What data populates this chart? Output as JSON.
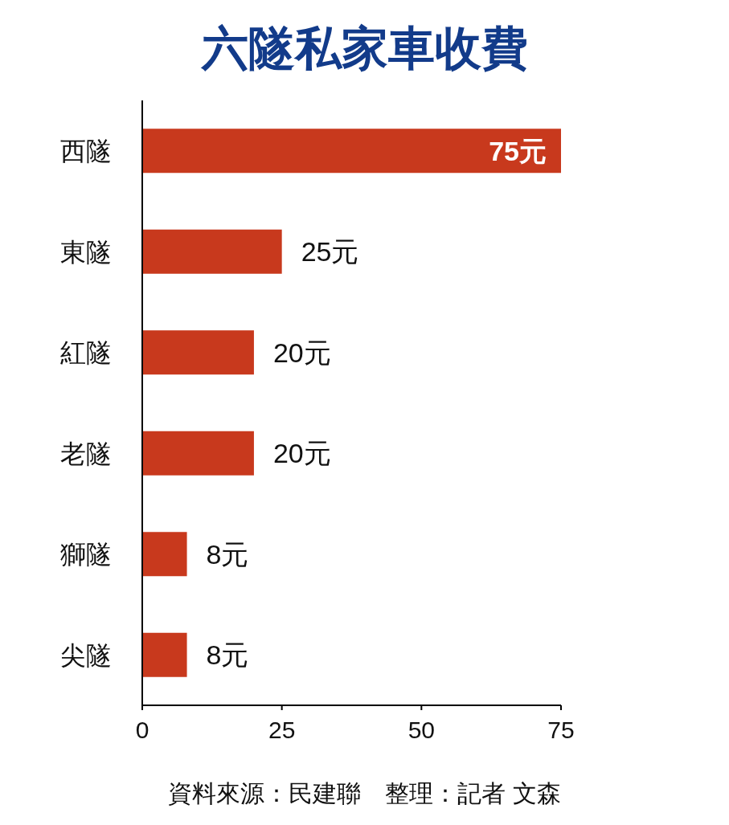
{
  "chart_data": {
    "type": "bar",
    "orientation": "horizontal",
    "title": "六隧私家車收費",
    "categories": [
      "西隧",
      "東隧",
      "紅隧",
      "老隧",
      "獅隧",
      "尖隧"
    ],
    "values": [
      75,
      25,
      20,
      20,
      8,
      8
    ],
    "value_labels": [
      "75元",
      "25元",
      "20元",
      "20元",
      "8元",
      "8元"
    ],
    "color": "#c8391d",
    "xlim": [
      0,
      75
    ],
    "xticks": [
      0,
      25,
      50,
      75
    ],
    "grid": false,
    "legend": false,
    "annotations": [
      "資料來源：民建聯　整理：記者 文森"
    ]
  }
}
